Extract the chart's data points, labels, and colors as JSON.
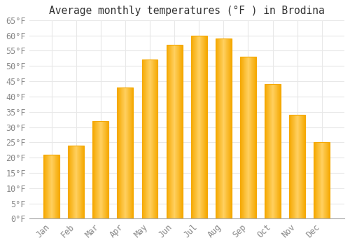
{
  "months": [
    "Jan",
    "Feb",
    "Mar",
    "Apr",
    "May",
    "Jun",
    "Jul",
    "Aug",
    "Sep",
    "Oct",
    "Nov",
    "Dec"
  ],
  "values": [
    21,
    24,
    32,
    43,
    52,
    57,
    60,
    59,
    53,
    44,
    34,
    25
  ],
  "bar_color_center": "#FFD060",
  "bar_color_edge": "#F5A800",
  "title": "Average monthly temperatures (°F ) in Brodina",
  "ylim": [
    0,
    65
  ],
  "yticks": [
    0,
    5,
    10,
    15,
    20,
    25,
    30,
    35,
    40,
    45,
    50,
    55,
    60,
    65
  ],
  "background_color": "#ffffff",
  "grid_color": "#e8e8e8",
  "title_fontsize": 10.5,
  "tick_fontsize": 8.5,
  "tick_color": "#888888",
  "font_family": "monospace"
}
